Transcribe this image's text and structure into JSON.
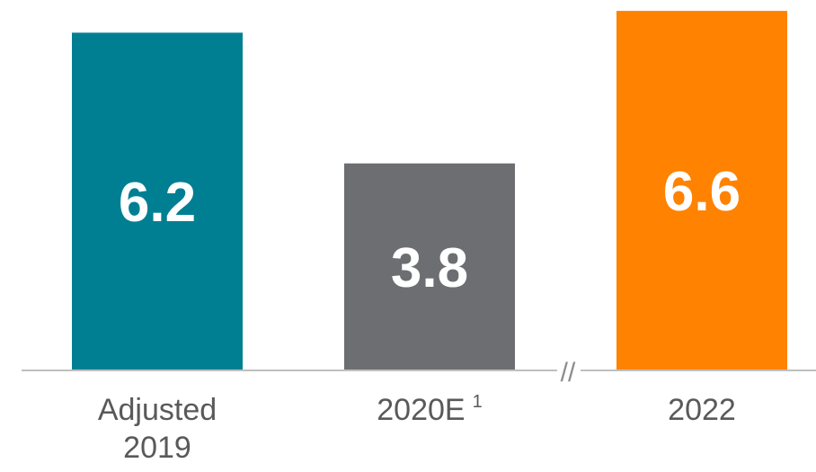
{
  "chart_data": {
    "type": "bar",
    "title": "",
    "xlabel": "",
    "ylabel": "",
    "ylim": [
      0,
      6.8
    ],
    "grid": false,
    "legend": "none",
    "axis_break": "between 2020E and 2022",
    "categories": [
      {
        "lines": [
          "Adjusted",
          "2019"
        ],
        "footnote": ""
      },
      {
        "lines": [
          "2020E"
        ],
        "footnote": "1"
      },
      {
        "lines": [
          "2022"
        ],
        "footnote": ""
      }
    ],
    "values": [
      6.2,
      3.8,
      6.6
    ],
    "value_labels": [
      "6.2",
      "3.8",
      "6.6"
    ],
    "colors": [
      "#007F93",
      "#6D6E71",
      "#FF8200"
    ],
    "break_mark": "//"
  },
  "style": {
    "axis_color": "#BFBFBF",
    "category_text_color": "#595959",
    "value_text_color": "#FFFFFF"
  }
}
